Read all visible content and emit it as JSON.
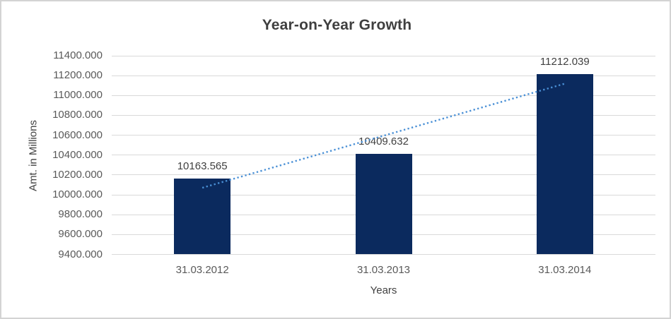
{
  "chart_data": {
    "type": "bar",
    "title": "Year-on-Year Growth",
    "xlabel": "Years",
    "ylabel": "Amt. in Millions",
    "categories": [
      "31.03.2012",
      "31.03.2013",
      "31.03.2014"
    ],
    "values": [
      10163.565,
      10409.632,
      11212.039
    ],
    "data_labels": [
      "10163.565",
      "10409.632",
      "11212.039"
    ],
    "ylim": [
      9400,
      11400
    ],
    "ytick_step": 200,
    "ytick_labels": [
      "11400.000",
      "11200.000",
      "11000.000",
      "10800.000",
      "10600.000",
      "10400.000",
      "10200.000",
      "10000.000",
      "9800.000",
      "9600.000",
      "9400.000"
    ],
    "grid": true,
    "legend": false,
    "trendline": {
      "style": "dotted",
      "start_value": 10070.8,
      "end_value": 11119.3
    }
  },
  "colors": {
    "bar": "#0b2a5e",
    "trendline": "#4a90d6",
    "gridline": "#d9d9d9",
    "title_text": "#3f3f3f",
    "axis_text": "#595959",
    "frame_border": "#d3d3d3"
  }
}
